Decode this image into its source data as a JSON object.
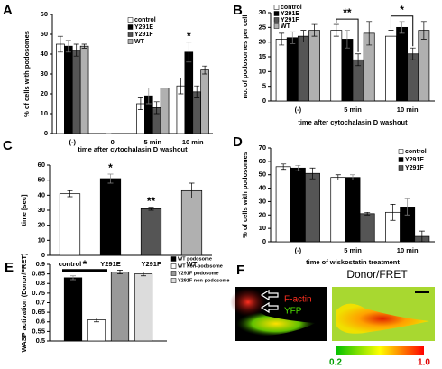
{
  "chart_data": [
    {
      "panel": "A",
      "type": "bar",
      "ylabel": "% of cells with podosomes",
      "xlabel": "time after cytochalasin D washout",
      "categories": [
        "(-)",
        "0",
        "5 min",
        "10 min"
      ],
      "series": [
        {
          "name": "control",
          "color": "#ffffff",
          "values": [
            45,
            0,
            15,
            24
          ],
          "errors": [
            4,
            0,
            3,
            4
          ]
        },
        {
          "name": "Y291E",
          "color": "#000000",
          "values": [
            44,
            0,
            19,
            41
          ],
          "errors": [
            3,
            0,
            4,
            5
          ]
        },
        {
          "name": "Y291F",
          "color": "#555555",
          "values": [
            42,
            0,
            13,
            21
          ],
          "errors": [
            3,
            0,
            3,
            3
          ]
        },
        {
          "name": "WT",
          "color": "#b0b0b0",
          "values": [
            44,
            0,
            23,
            32
          ],
          "errors": [
            1,
            0,
            0,
            2
          ]
        }
      ],
      "ylim": [
        0,
        60
      ],
      "yticks": [
        0,
        10,
        20,
        30,
        40,
        50,
        60
      ],
      "annotations": [
        "*"
      ]
    },
    {
      "panel": "B",
      "type": "bar",
      "ylabel": "no. of podosomes per cell",
      "xlabel": "time after cytochalasin D washout",
      "categories": [
        "(-)",
        "5 min",
        "10 min"
      ],
      "series": [
        {
          "name": "control",
          "color": "#ffffff",
          "values": [
            21,
            24,
            22
          ],
          "errors": [
            2,
            2,
            2
          ]
        },
        {
          "name": "Y291E",
          "color": "#000000",
          "values": [
            21.5,
            21,
            25
          ],
          "errors": [
            2,
            3,
            2
          ]
        },
        {
          "name": "Y291F",
          "color": "#555555",
          "values": [
            22,
            14,
            16
          ],
          "errors": [
            2,
            2,
            2
          ]
        },
        {
          "name": "WT",
          "color": "#b0b0b0",
          "values": [
            24,
            23,
            24
          ],
          "errors": [
            2,
            4,
            3
          ]
        }
      ],
      "ylim": [
        0,
        30
      ],
      "yticks": [
        0,
        5,
        10,
        15,
        20,
        25,
        30
      ],
      "annotations": [
        "**",
        "*"
      ]
    },
    {
      "panel": "C",
      "type": "bar",
      "ylabel": "time [sec]",
      "categories": [
        "control",
        "Y291E",
        "Y291F",
        "WT"
      ],
      "values": [
        41,
        51,
        31,
        43
      ],
      "errors": [
        2,
        3,
        1,
        5
      ],
      "colors": [
        "#ffffff",
        "#000000",
        "#555555",
        "#b0b0b0"
      ],
      "ylim": [
        0,
        60
      ],
      "yticks": [
        0,
        10,
        20,
        30,
        40,
        50,
        60
      ],
      "annotations": [
        "*",
        "**"
      ]
    },
    {
      "panel": "D",
      "type": "bar",
      "ylabel": "% of cells with podosomes",
      "xlabel": "time of wiskostatin treatment",
      "categories": [
        "(-)",
        "5 min",
        "10 min"
      ],
      "series": [
        {
          "name": "control",
          "color": "#ffffff",
          "values": [
            56,
            48,
            22
          ],
          "errors": [
            2,
            2,
            6
          ]
        },
        {
          "name": "Y291E",
          "color": "#000000",
          "values": [
            55,
            48,
            26
          ],
          "errors": [
            2,
            2,
            6
          ]
        },
        {
          "name": "Y291F",
          "color": "#555555",
          "values": [
            51,
            21,
            4
          ],
          "errors": [
            4,
            1,
            4
          ]
        }
      ],
      "ylim": [
        0,
        70
      ],
      "yticks": [
        0,
        10,
        20,
        30,
        40,
        50,
        60,
        70
      ]
    },
    {
      "panel": "E",
      "type": "bar",
      "ylabel": "WASP activation (Donor/FRET)",
      "categories": [
        null
      ],
      "series": [
        {
          "name": "WT podosome",
          "color": "#000000",
          "values": [
            0.83
          ],
          "errors": [
            0.01
          ]
        },
        {
          "name": "WT non-podosome",
          "color": "#ffffff",
          "values": [
            0.61
          ],
          "errors": [
            0.01
          ]
        },
        {
          "name": "Y291F podosome",
          "color": "#999999",
          "values": [
            0.86
          ],
          "errors": [
            0.01
          ]
        },
        {
          "name": "Y291F non-podosome",
          "color": "#dcdcdc",
          "values": [
            0.85
          ],
          "errors": [
            0.01
          ]
        }
      ],
      "ylim": [
        0.5,
        0.9
      ],
      "yticks": [
        0.5,
        0.55,
        0.6,
        0.65,
        0.7,
        0.75,
        0.8,
        0.85,
        0.9
      ],
      "annotations": [
        "*"
      ]
    }
  ],
  "image_panel": {
    "panel": "F",
    "title": "Donor/FRET",
    "channels": [
      "F-actin",
      "YFP"
    ],
    "colorbar_labels": [
      "0.2",
      "1.0"
    ]
  }
}
